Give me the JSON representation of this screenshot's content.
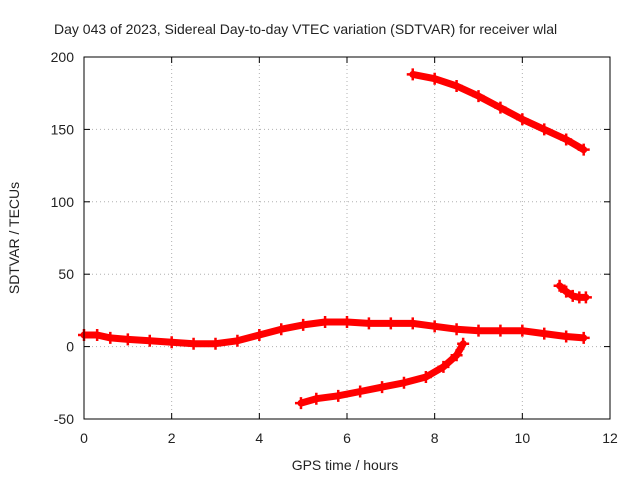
{
  "chart_data": {
    "type": "scatter",
    "title": "Day 043 of 2023, Sidereal Day-to-day VTEC variation (SDTVAR) for receiver wlal",
    "xlabel": "GPS time / hours",
    "ylabel": "SDTVAR / TECUs",
    "xlim": [
      0,
      12
    ],
    "ylim": [
      -50,
      200
    ],
    "xticks": [
      "0",
      "2",
      "4",
      "6",
      "8",
      "10",
      "12"
    ],
    "yticks": [
      "-50",
      "0",
      "50",
      "100",
      "150",
      "200"
    ],
    "grid": true,
    "marker_color": "#ff0000",
    "series": [
      {
        "name": "satellite-track-1",
        "x": [
          0.0,
          0.3,
          0.6,
          1.0,
          1.5,
          2.0,
          2.5,
          3.0,
          3.5,
          4.0,
          4.5,
          5.0,
          5.5,
          6.0,
          6.5,
          7.0,
          7.5,
          8.0,
          8.5,
          9.0,
          9.5,
          10.0,
          10.5,
          11.0,
          11.4
        ],
        "y": [
          8,
          8,
          6,
          5,
          4,
          3,
          2,
          2,
          4,
          8,
          12,
          15,
          17,
          17,
          16,
          16,
          16,
          14,
          12,
          11,
          11,
          11,
          9,
          7,
          6
        ]
      },
      {
        "name": "satellite-track-2",
        "x": [
          7.5,
          8.0,
          8.5,
          9.0,
          9.5,
          10.0,
          10.5,
          11.0,
          11.4
        ],
        "y": [
          188,
          185,
          180,
          173,
          165,
          157,
          150,
          143,
          136
        ]
      },
      {
        "name": "satellite-track-3",
        "x": [
          4.95,
          5.3,
          5.8,
          6.3,
          6.8,
          7.3,
          7.8,
          8.2,
          8.5,
          8.65
        ],
        "y": [
          -39,
          -36,
          -34,
          -31,
          -28,
          -25,
          -21,
          -14,
          -6,
          2
        ]
      },
      {
        "name": "satellite-track-4",
        "x": [
          10.85,
          11.0,
          11.15,
          11.3,
          11.45
        ],
        "y": [
          42,
          38,
          35,
          34,
          34
        ]
      }
    ]
  }
}
